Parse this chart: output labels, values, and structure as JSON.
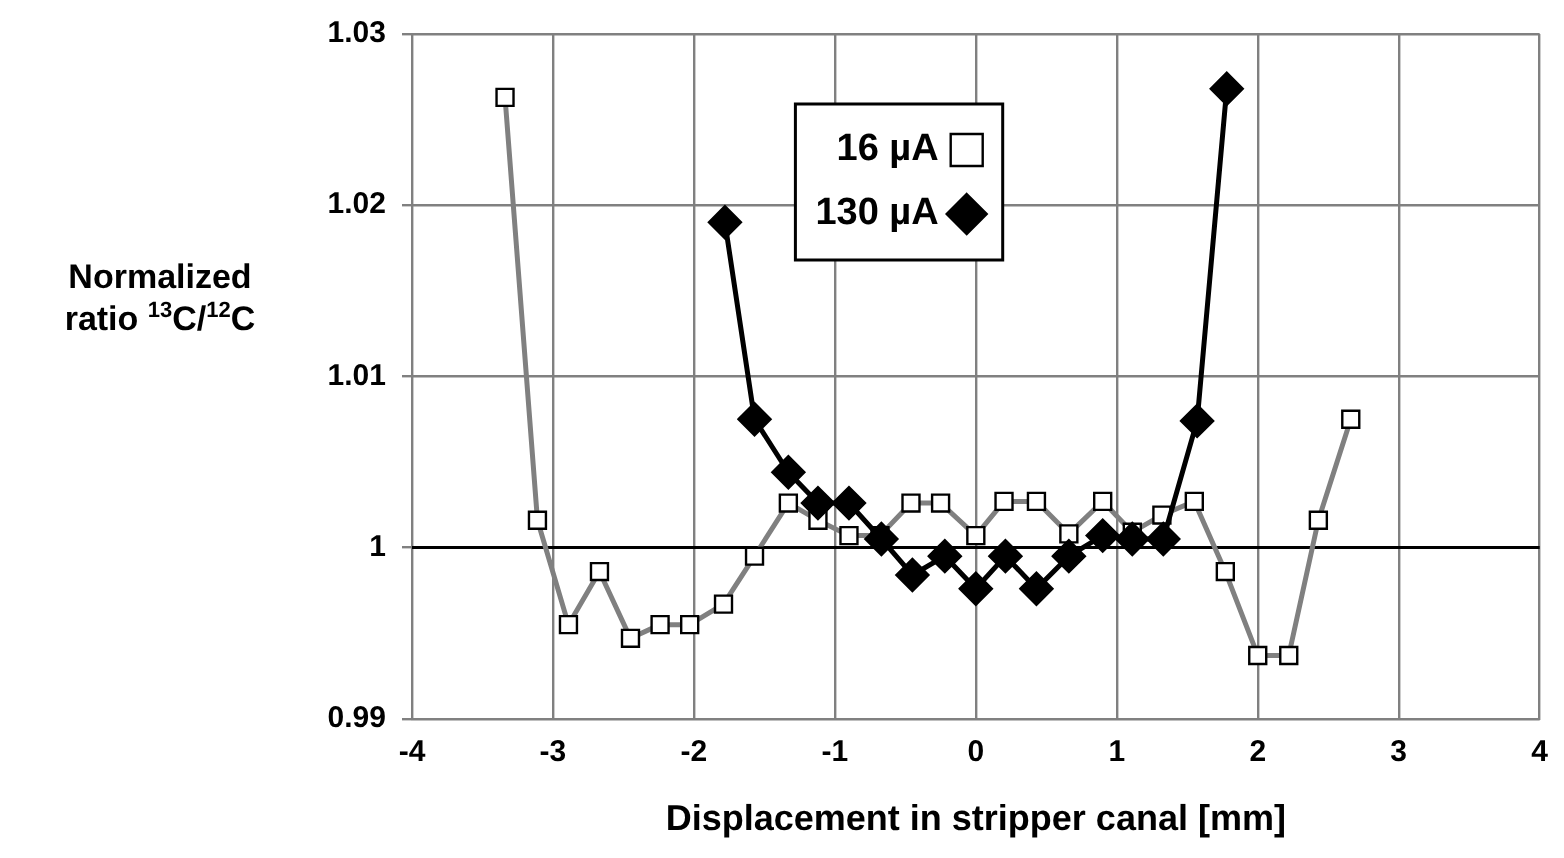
{
  "chart_data": {
    "type": "line",
    "xlabel": "Displacement in stripper canal [mm]",
    "ylabel": "Normalized ratio $^{13}$C/$^{12}$C",
    "xlim": [
      -4,
      4
    ],
    "xticks": [
      -4,
      -3,
      -2,
      -1,
      0,
      1,
      2,
      3,
      4
    ],
    "ylim": [
      0.99,
      1.03
    ],
    "yticks": [
      0.99,
      1,
      1.01,
      1.02,
      1.03
    ],
    "grid": true,
    "legend": "top",
    "ref_lines": [
      {
        "axis": "y",
        "value": 1,
        "color": "#000000"
      }
    ],
    "series": [
      {
        "name": "16 µA",
        "color": "#808080",
        "marker": "square",
        "x": [
          -3.34,
          -3.11,
          -2.89,
          -2.67,
          -2.45,
          -2.24,
          -2.03,
          -1.79,
          -1.57,
          -1.33,
          -1.12,
          -0.9,
          -0.68,
          -0.46,
          -0.25,
          0,
          0.2,
          0.43,
          0.66,
          0.9,
          1.11,
          1.32,
          1.55,
          1.77,
          2.0,
          2.22,
          2.43,
          2.66
        ],
        "values": [
          1.0263,
          1.0016,
          0.9955,
          0.9986,
          0.9947,
          0.9955,
          0.9955,
          0.9967,
          0.9995,
          1.0026,
          1.0016,
          1.0007,
          1.0007,
          1.0026,
          1.0026,
          1.0007,
          1.0027,
          1.0027,
          1.0008,
          1.0027,
          1.0009,
          1.0019,
          1.0027,
          0.9986,
          0.9937,
          0.9937,
          1.0016,
          1.0075
        ]
      },
      {
        "name": "130 µA",
        "color": "#000000",
        "marker": "diamond",
        "x": [
          -1.78,
          -1.57,
          -1.33,
          -1.12,
          -0.9,
          -0.67,
          -0.45,
          -0.22,
          0,
          0.21,
          0.43,
          0.66,
          0.9,
          1.11,
          1.33,
          1.57,
          1.78
        ],
        "values": [
          1.019,
          1.0075,
          1.0044,
          1.0026,
          1.0026,
          1.0005,
          0.9984,
          0.9995,
          0.9976,
          0.9995,
          0.9976,
          0.9995,
          1.0007,
          1.0005,
          1.0005,
          1.0074,
          1.0268
        ]
      }
    ]
  }
}
